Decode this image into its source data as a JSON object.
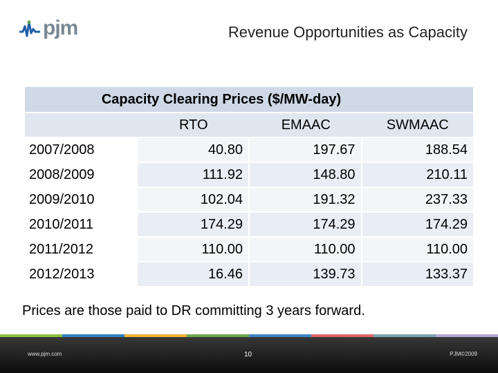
{
  "header": {
    "logo_text": "pjm",
    "title": "Revenue Opportunities as Capacity"
  },
  "table": {
    "title": "Capacity Clearing Prices ($/MW-day)",
    "columns": [
      "RTO",
      "EMAAC",
      "SWMAAC"
    ],
    "rows": [
      {
        "year": "2007/2008",
        "values": [
          "40.80",
          "197.67",
          "188.54"
        ]
      },
      {
        "year": "2008/2009",
        "values": [
          "111.92",
          "148.80",
          "210.11"
        ]
      },
      {
        "year": "2009/2010",
        "values": [
          "102.04",
          "191.32",
          "237.33"
        ]
      },
      {
        "year": "2010/2011",
        "values": [
          "174.29",
          "174.29",
          "174.29"
        ]
      },
      {
        "year": "2011/2012",
        "values": [
          "110.00",
          "110.00",
          "110.00"
        ]
      },
      {
        "year": "2012/2013",
        "values": [
          "16.46",
          "139.73",
          "133.37"
        ]
      }
    ]
  },
  "note": "Prices are those paid to DR committing 3 years forward.",
  "footer": {
    "website": "www.pjm.com",
    "page_number": "10",
    "copyright": "PJM©2009",
    "strip_colors": [
      "#8bbf3f",
      "#2f7fc1",
      "#f2b233",
      "#6aa84f",
      "#3d85c6",
      "#e06666",
      "#76a5af",
      "#b4a7d6"
    ]
  }
}
